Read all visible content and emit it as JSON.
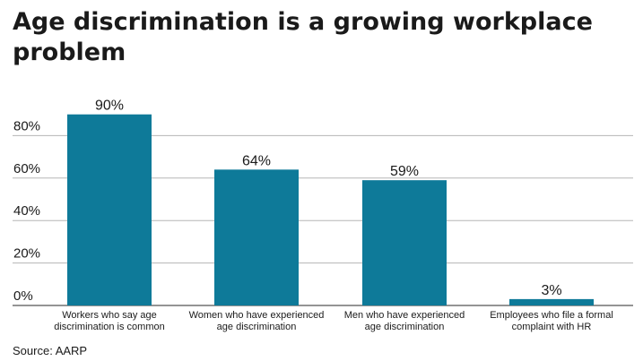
{
  "chart_data": {
    "type": "bar",
    "title": "Age discrimination is a growing workplace problem",
    "categories": [
      [
        "Workers who say age",
        "discrimination is common"
      ],
      [
        "Women who have experienced",
        "age discrimination"
      ],
      [
        "Men who have experienced",
        "age discrimination"
      ],
      [
        "Employees who file a formal",
        "complaint with HR"
      ]
    ],
    "values": [
      90,
      64,
      59,
      3
    ],
    "data_labels": [
      "90%",
      "64%",
      "59%",
      "3%"
    ],
    "yticks": [
      0,
      20,
      40,
      60,
      80
    ],
    "ytick_labels": [
      "0%",
      "20%",
      "40%",
      "60%",
      "80%"
    ],
    "ylim": [
      0,
      100
    ],
    "grid": true,
    "bar_color": "#0e7a99",
    "grid_color": "#b5b5b5",
    "source": "Source: AARP"
  }
}
